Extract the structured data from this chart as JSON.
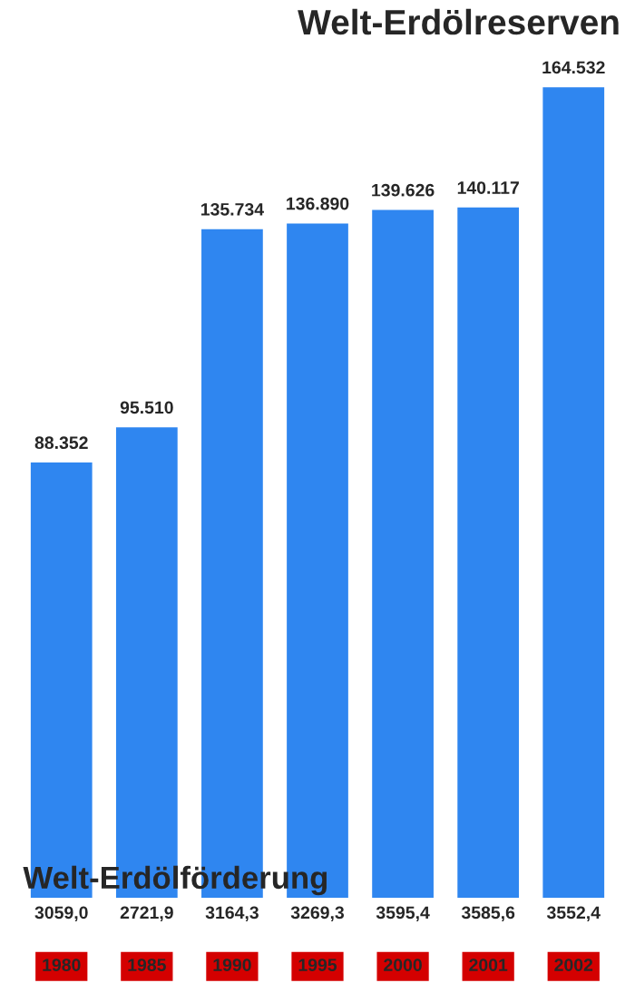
{
  "chart_data": [
    {
      "type": "bar",
      "title": "Welt-Erdölreserven",
      "categories": [
        "1980",
        "1985",
        "1990",
        "1995",
        "2000",
        "2001",
        "2002"
      ],
      "values": [
        88352,
        95510,
        135734,
        136890,
        139626,
        140117,
        164532
      ],
      "value_labels": [
        "88.352",
        "95.510",
        "135.734",
        "136.890",
        "139.626",
        "140.117",
        "164.532"
      ],
      "color": "#2f86f0"
    },
    {
      "type": "other",
      "title": "Welt-Erdölförderung",
      "categories": [
        null,
        null,
        null,
        null,
        null,
        null,
        null
      ],
      "values": [
        3059.0,
        2721.9,
        3164.3,
        3269.3,
        3595.4,
        3585.6,
        3552.4
      ],
      "value_labels": [
        "3059,0",
        "2721,9",
        "3164,3",
        "3269,3",
        "3595,4",
        "3585,6",
        "3552,4"
      ]
    }
  ]
}
